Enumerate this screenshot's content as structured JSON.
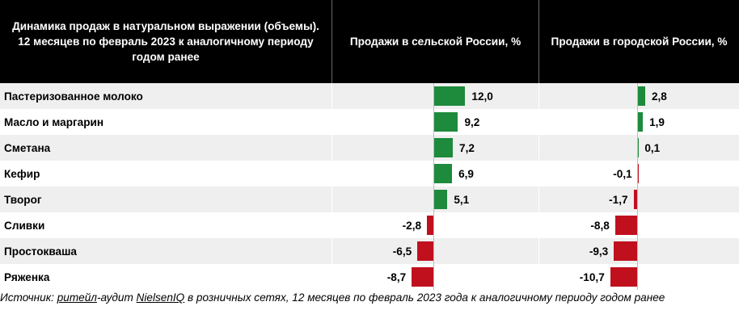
{
  "header": {
    "col1": "Динамика продаж в натуральном выражении (объемы). 12 месяцев по февраль 2023 к аналогичному периоду годом ранее",
    "col2": "Продажи в сельской России, %",
    "col3": "Продажи в городской России, %"
  },
  "colors": {
    "positive": "#1e8a3c",
    "negative": "#c0101e",
    "header_bg": "#000000",
    "stripe": "#efefef"
  },
  "chart_data": {
    "type": "bar",
    "orientation": "horizontal",
    "categories": [
      "Пастеризованное молоко",
      "Масло и маргарин",
      "Сметана",
      "Кефир",
      "Творог",
      "Сливки",
      "Простокваша",
      "Ряженка"
    ],
    "series": [
      {
        "name": "Продажи в сельской России, %",
        "values": [
          12.0,
          9.2,
          7.2,
          6.9,
          5.1,
          -2.8,
          -6.5,
          -8.7
        ],
        "labels": [
          "12,0",
          "9,2",
          "7,2",
          "6,9",
          "5,1",
          "-2,8",
          "-6,5",
          "-8,7"
        ]
      },
      {
        "name": "Продажи в городской России, %",
        "values": [
          2.8,
          1.9,
          0.1,
          -0.1,
          -1.7,
          -8.8,
          -9.3,
          -10.7
        ],
        "labels": [
          "2,8",
          "1,9",
          "0,1",
          "-0,1",
          "-1,7",
          "-8,8",
          "-9,3",
          "-10,7"
        ]
      }
    ]
  },
  "source": {
    "prefix": "Источник: ",
    "link1": "ритейл",
    "mid1": "-аудит ",
    "link2": "NielsenIQ",
    "rest": " в розничных сетях, 12 месяцев по февраль 2023 года к аналогичному периоду годом ранее"
  }
}
